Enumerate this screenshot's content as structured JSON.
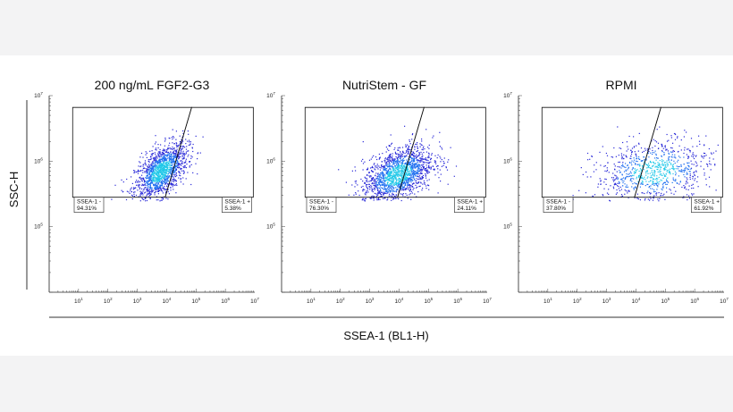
{
  "figure": {
    "ylabel": "SSC-H",
    "xlabel": "SSEA-1 (BL1-H)",
    "x_log_range": [
      0,
      7
    ],
    "y_log_range": [
      4,
      7
    ]
  },
  "chart_data": [
    {
      "type": "scatter",
      "title": "200 ng/mL FGF2-G3",
      "x_scale": "log",
      "y_scale": "log",
      "xlim": [
        1,
        10000000
      ],
      "ylim": [
        10000,
        10000000
      ],
      "x_ticks": [
        "10^1",
        "10^2",
        "10^3",
        "10^4",
        "10^5",
        "10^6",
        "10^7"
      ],
      "y_ticks": [
        "10^5",
        "10^6",
        "10^7"
      ],
      "gates": [
        {
          "label": "SSEA-1 -",
          "percent": "94.31%"
        },
        {
          "label": "SSEA-1 +",
          "percent": "5.38%"
        }
      ],
      "population": {
        "log_x_center": 3.8,
        "log_x_spread": 0.45,
        "log_y_center": 5.85,
        "log_y_spread": 0.22,
        "correlation": 0.55,
        "events": 1500
      }
    },
    {
      "type": "scatter",
      "title": "NutriStem - GF",
      "x_scale": "log",
      "y_scale": "log",
      "xlim": [
        1,
        10000000
      ],
      "ylim": [
        10000,
        10000000
      ],
      "x_ticks": [
        "10^1",
        "10^2",
        "10^3",
        "10^4",
        "10^5",
        "10^6",
        "10^7"
      ],
      "y_ticks": [
        "10^5",
        "10^6",
        "10^7"
      ],
      "gates": [
        {
          "label": "SSEA-1 -",
          "percent": "76.30%"
        },
        {
          "label": "SSEA-1 +",
          "percent": "24.11%"
        }
      ],
      "population": {
        "log_x_center": 3.95,
        "log_x_spread": 0.6,
        "log_y_center": 5.8,
        "log_y_spread": 0.22,
        "correlation": 0.45,
        "events": 1700
      }
    },
    {
      "type": "scatter",
      "title": "RPMI",
      "x_scale": "log",
      "y_scale": "log",
      "xlim": [
        1,
        10000000
      ],
      "ylim": [
        10000,
        10000000
      ],
      "x_ticks": [
        "10^1",
        "10^2",
        "10^3",
        "10^4",
        "10^5",
        "10^6",
        "10^7"
      ],
      "y_ticks": [
        "10^5",
        "10^6",
        "10^7"
      ],
      "gates": [
        {
          "label": "SSEA-1 -",
          "percent": "37.80%"
        },
        {
          "label": "SSEA-1 +",
          "percent": "61.92%"
        }
      ],
      "population": {
        "log_x_center": 4.6,
        "log_x_spread": 1.0,
        "log_y_center": 5.85,
        "log_y_spread": 0.25,
        "correlation": 0.2,
        "events": 900
      }
    }
  ],
  "colors": {
    "dot_low": "#2a2ad8",
    "dot_mid": "#1f6ff0",
    "dot_high": "#20c8e8",
    "gate_line": "#111111"
  }
}
